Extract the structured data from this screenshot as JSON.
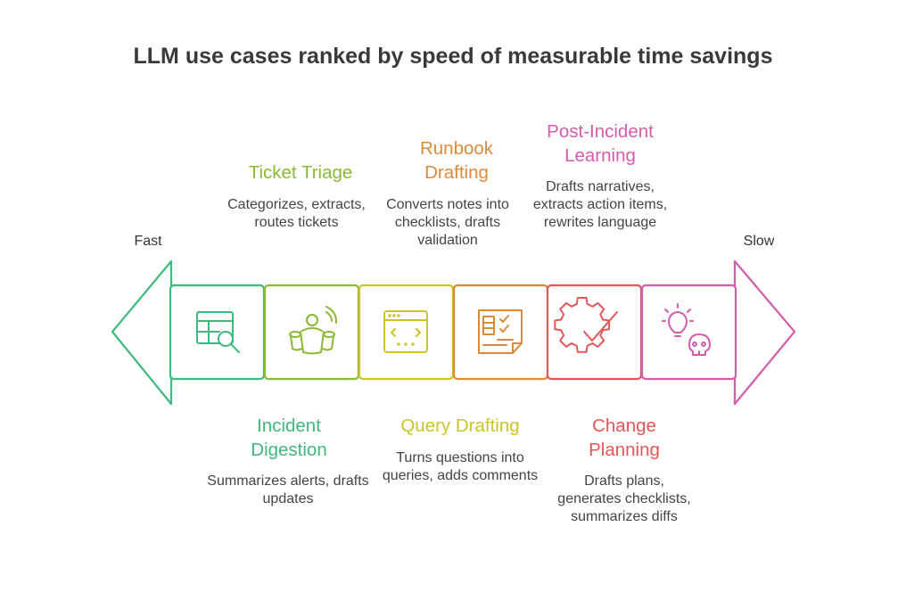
{
  "title": "LLM use cases ranked by speed of measurable time savings",
  "ends": {
    "left": "Fast",
    "right": "Slow"
  },
  "colors": {
    "green": "#3fba7c",
    "lime": "#8ab936",
    "yellow": "#cbc52a",
    "orange": "#df8a38",
    "red": "#e15759",
    "pink": "#d45cac"
  },
  "steps": [
    {
      "title": "Incident Digestion",
      "title_lines": [
        "Incident",
        "Digestion"
      ],
      "description": "Summarizes alerts, drafts updates",
      "position": "below",
      "icon": "table-search-icon",
      "color": "#3fba7c"
    },
    {
      "title": "Ticket Triage",
      "title_lines": [
        "Ticket Triage"
      ],
      "description": "Categorizes, extracts, routes tickets",
      "position": "above",
      "icon": "group-people-icon",
      "color": "#8ab936"
    },
    {
      "title": "Query Drafting",
      "title_lines": [
        "Query Drafting"
      ],
      "description": "Turns questions into queries, adds comments",
      "position": "below",
      "icon": "code-window-icon",
      "color": "#cbc52a"
    },
    {
      "title": "Runbook Drafting",
      "title_lines": [
        "Runbook",
        "Drafting"
      ],
      "description": "Converts notes into checklists, drafts validation",
      "position": "above",
      "icon": "checklist-document-icon",
      "color": "#df8a38"
    },
    {
      "title": "Change Planning",
      "title_lines": [
        "Change",
        "Planning"
      ],
      "description": "Drafts plans, generates checklists, summarizes diffs",
      "position": "below",
      "icon": "gear-check-icon",
      "color": "#e15759"
    },
    {
      "title": "Post-Incident Learning",
      "title_lines": [
        "Post-Incident",
        "Learning"
      ],
      "description": "Drafts narratives, extracts action items, rewrites language",
      "position": "above",
      "icon": "lightbulb-skull-icon",
      "color": "#d45cac"
    }
  ]
}
